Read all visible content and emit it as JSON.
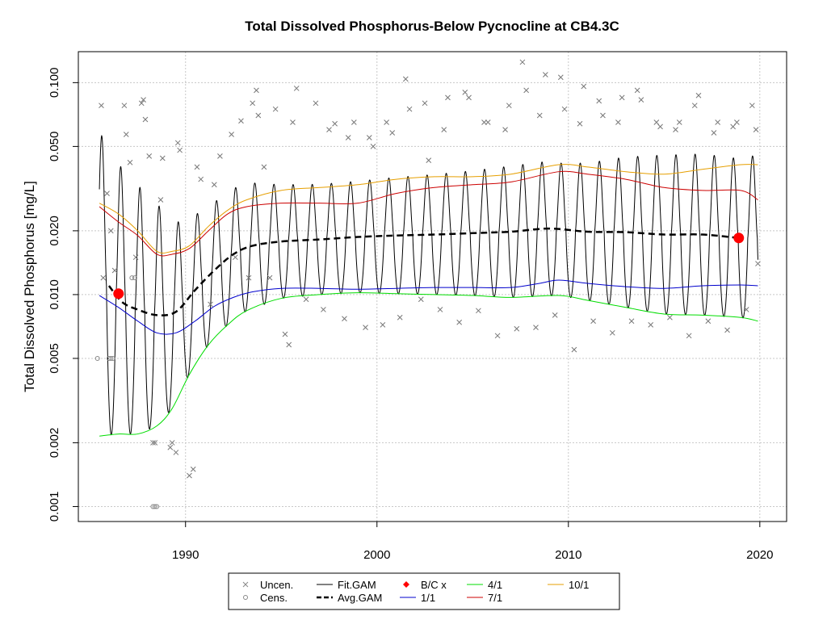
{
  "chart_data": {
    "type": "line",
    "title": "Total Dissolved Phosphorus-Below Pycnocline at CB4.3C",
    "xlabel": "",
    "ylabel": "Total Dissolved Phosphorus [mg/L]",
    "y_scale": "log",
    "xlim": [
      1984.4,
      2021.4
    ],
    "ylim": [
      0.00085,
      0.14
    ],
    "x_ticks": [
      1990,
      2000,
      2010,
      2020
    ],
    "x_tick_labels": [
      "1990",
      "2000",
      "2010",
      "2020"
    ],
    "y_ticks": [
      0.001,
      0.002,
      0.005,
      0.01,
      0.02,
      0.05,
      0.1
    ],
    "y_tick_labels": [
      "0.001",
      "0.002",
      "0.005",
      "0.010",
      "0.020",
      "0.050",
      "0.100"
    ],
    "grid": true,
    "legend_position": "bottom",
    "legend": [
      {
        "label": "Uncen.",
        "symbol": "x",
        "color": "#888888"
      },
      {
        "label": "Cens.",
        "symbol": "o",
        "color": "#888888"
      },
      {
        "label": "Fit.GAM",
        "symbol": "line",
        "color": "#000000"
      },
      {
        "label": "Avg.GAM",
        "symbol": "dashed",
        "color": "#000000"
      },
      {
        "label": "B/C x",
        "symbol": "diamond",
        "color": "#ff0000"
      },
      {
        "label": "1/1",
        "symbol": "line",
        "color": "#0000cc"
      },
      {
        "label": "4/1",
        "symbol": "line",
        "color": "#00dd00"
      },
      {
        "label": "7/1",
        "symbol": "line",
        "color": "#cc0000"
      },
      {
        "label": "10/1",
        "symbol": "line",
        "color": "#e69f00"
      }
    ],
    "series": [
      {
        "name": "10/1",
        "color": "#e69f00",
        "x": [
          1985.5,
          1986.5,
          1987.5,
          1988.5,
          1989.3,
          1990.2,
          1991.2,
          1992.2,
          1993.2,
          1995,
          1997,
          1999,
          2001,
          2003,
          2005,
          2007,
          2009.5,
          2011,
          2013,
          2015,
          2017,
          2019,
          2019.9
        ],
        "y": [
          0.027,
          0.024,
          0.02,
          0.016,
          0.016,
          0.017,
          0.021,
          0.025,
          0.028,
          0.031,
          0.032,
          0.033,
          0.035,
          0.036,
          0.036,
          0.037,
          0.041,
          0.04,
          0.038,
          0.037,
          0.039,
          0.041,
          0.041
        ]
      },
      {
        "name": "7/1",
        "color": "#cc0000",
        "x": [
          1985.5,
          1986.5,
          1987.5,
          1988.5,
          1989.3,
          1990.2,
          1991.2,
          1992.2,
          1993.2,
          1995,
          1997,
          1999,
          2001,
          2003,
          2005,
          2007,
          2009.5,
          2011,
          2013,
          2015,
          2017,
          2019,
          2019.9
        ],
        "y": [
          0.026,
          0.022,
          0.019,
          0.0155,
          0.0155,
          0.0165,
          0.02,
          0.024,
          0.026,
          0.027,
          0.027,
          0.027,
          0.03,
          0.032,
          0.033,
          0.034,
          0.038,
          0.037,
          0.035,
          0.032,
          0.031,
          0.031,
          0.028
        ]
      },
      {
        "name": "1/1",
        "color": "#0000cc",
        "x": [
          1985.5,
          1986.5,
          1987.5,
          1988.5,
          1989.5,
          1990.5,
          1991.5,
          1992.5,
          1993.5,
          1995,
          1997,
          1999,
          2001,
          2003,
          2005,
          2007,
          2008.5,
          2009.5,
          2011,
          2013,
          2015,
          2017,
          2019,
          2019.9
        ],
        "y": [
          0.0099,
          0.0087,
          0.0075,
          0.0066,
          0.0066,
          0.0075,
          0.0088,
          0.0097,
          0.0103,
          0.0107,
          0.0107,
          0.0106,
          0.0107,
          0.0108,
          0.0108,
          0.0108,
          0.0113,
          0.0117,
          0.0113,
          0.0109,
          0.0107,
          0.011,
          0.0111,
          0.011
        ]
      },
      {
        "name": "4/1",
        "color": "#00dd00",
        "x": [
          1985.5,
          1986.5,
          1987.5,
          1988.5,
          1989.3,
          1990.2,
          1991.2,
          1992.2,
          1993.2,
          1995,
          1997,
          1999,
          2001,
          2003,
          2005,
          2007,
          2009.5,
          2011,
          2013,
          2015,
          2017,
          2019,
          2019.9
        ],
        "y": [
          0.00215,
          0.0022,
          0.0022,
          0.0024,
          0.0029,
          0.0042,
          0.0058,
          0.0072,
          0.0084,
          0.0096,
          0.01,
          0.0102,
          0.0101,
          0.01,
          0.0099,
          0.0097,
          0.0099,
          0.0094,
          0.0087,
          0.0081,
          0.008,
          0.0078,
          0.0075
        ]
      },
      {
        "name": "Avg.GAM",
        "color": "#000000",
        "x": [
          1986,
          1986.7,
          1987.5,
          1988.5,
          1989.5,
          1990.5,
          1991.5,
          1992.5,
          1993.5,
          1995,
          1997,
          1999,
          2001,
          2003,
          2005,
          2007,
          2009,
          2011,
          2013,
          2015,
          2017,
          2018.9
        ],
        "y": [
          0.011,
          0.0092,
          0.0085,
          0.008,
          0.0083,
          0.0105,
          0.013,
          0.0155,
          0.017,
          0.0178,
          0.0182,
          0.0187,
          0.019,
          0.0192,
          0.0195,
          0.0198,
          0.0205,
          0.0198,
          0.0197,
          0.0192,
          0.0192,
          0.0185
        ]
      },
      {
        "name": "B/C x",
        "color": "#ff0000",
        "x": [
          1986.5,
          2018.9
        ],
        "y": [
          0.0101,
          0.0185
        ]
      }
    ],
    "fit_gam": {
      "name": "Fit.GAM",
      "color": "#000000",
      "start": 1985.5,
      "end": 2019.9,
      "peak_phase": 0.62,
      "note": "seasonal oscillation; annual peaks ~0.05-0.07 mg/L, troughs ~0.0022-0.008 mg/L"
    },
    "observations_uncensored": [
      [
        1985.6,
        0.078
      ],
      [
        1985.7,
        0.012
      ],
      [
        1985.9,
        0.03
      ],
      [
        1986.1,
        0.02
      ],
      [
        1986.3,
        0.013
      ],
      [
        1986.8,
        0.078
      ],
      [
        1986.9,
        0.057
      ],
      [
        1987.1,
        0.042
      ],
      [
        1987.4,
        0.015
      ],
      [
        1987.7,
        0.08
      ],
      [
        1987.8,
        0.083
      ],
      [
        1987.9,
        0.067
      ],
      [
        1988.1,
        0.045
      ],
      [
        1988.3,
        0.002
      ],
      [
        1988.4,
        0.002
      ],
      [
        1988.7,
        0.028
      ],
      [
        1988.8,
        0.044
      ],
      [
        1989.2,
        0.0019
      ],
      [
        1989.3,
        0.002
      ],
      [
        1989.5,
        0.0018
      ],
      [
        1989.6,
        0.052
      ],
      [
        1989.7,
        0.048
      ],
      [
        1990.2,
        0.0014
      ],
      [
        1990.4,
        0.0015
      ],
      [
        1990.6,
        0.04
      ],
      [
        1990.8,
        0.035
      ],
      [
        1991.3,
        0.009
      ],
      [
        1991.5,
        0.033
      ],
      [
        1991.8,
        0.045
      ],
      [
        1992.4,
        0.057
      ],
      [
        1992.6,
        0.015
      ],
      [
        1992.9,
        0.066
      ],
      [
        1993.3,
        0.012
      ],
      [
        1993.5,
        0.08
      ],
      [
        1993.7,
        0.092
      ],
      [
        1993.8,
        0.07
      ],
      [
        1994.1,
        0.04
      ],
      [
        1994.4,
        0.012
      ],
      [
        1994.7,
        0.075
      ],
      [
        1995.2,
        0.0065
      ],
      [
        1995.4,
        0.0058
      ],
      [
        1995.6,
        0.065
      ],
      [
        1995.8,
        0.094
      ],
      [
        1996.3,
        0.0095
      ],
      [
        1996.8,
        0.08
      ],
      [
        1997.2,
        0.0085
      ],
      [
        1997.5,
        0.06
      ],
      [
        1997.8,
        0.064
      ],
      [
        1998.3,
        0.0077
      ],
      [
        1998.5,
        0.055
      ],
      [
        1998.8,
        0.065
      ],
      [
        1999.4,
        0.007
      ],
      [
        1999.6,
        0.055
      ],
      [
        1999.8,
        0.05
      ],
      [
        2000.3,
        0.0072
      ],
      [
        2000.5,
        0.065
      ],
      [
        2000.8,
        0.058
      ],
      [
        2001.2,
        0.0078
      ],
      [
        2001.5,
        0.104
      ],
      [
        2001.7,
        0.075
      ],
      [
        2002.3,
        0.0095
      ],
      [
        2002.5,
        0.08
      ],
      [
        2002.7,
        0.043
      ],
      [
        2003.3,
        0.0085
      ],
      [
        2003.5,
        0.06
      ],
      [
        2003.7,
        0.085
      ],
      [
        2004.3,
        0.0074
      ],
      [
        2004.6,
        0.09
      ],
      [
        2004.8,
        0.085
      ],
      [
        2005.3,
        0.0084
      ],
      [
        2005.6,
        0.065
      ],
      [
        2005.8,
        0.065
      ],
      [
        2006.3,
        0.0064
      ],
      [
        2006.7,
        0.06
      ],
      [
        2006.9,
        0.078
      ],
      [
        2007.3,
        0.0069
      ],
      [
        2007.6,
        0.125
      ],
      [
        2007.8,
        0.092
      ],
      [
        2008.3,
        0.007
      ],
      [
        2008.5,
        0.07
      ],
      [
        2008.8,
        0.109
      ],
      [
        2009.3,
        0.008
      ],
      [
        2009.6,
        0.106
      ],
      [
        2009.8,
        0.075
      ],
      [
        2010.3,
        0.0055
      ],
      [
        2010.6,
        0.064
      ],
      [
        2010.8,
        0.096
      ],
      [
        2011.3,
        0.0075
      ],
      [
        2011.6,
        0.082
      ],
      [
        2011.8,
        0.07
      ],
      [
        2012.3,
        0.0066
      ],
      [
        2012.6,
        0.065
      ],
      [
        2012.8,
        0.085
      ],
      [
        2013.3,
        0.0075
      ],
      [
        2013.6,
        0.092
      ],
      [
        2013.8,
        0.083
      ],
      [
        2014.3,
        0.0072
      ],
      [
        2014.6,
        0.065
      ],
      [
        2014.8,
        0.062
      ],
      [
        2015.3,
        0.0078
      ],
      [
        2015.6,
        0.06
      ],
      [
        2015.8,
        0.065
      ],
      [
        2016.3,
        0.0064
      ],
      [
        2016.6,
        0.078
      ],
      [
        2016.8,
        0.087
      ],
      [
        2017.3,
        0.0075
      ],
      [
        2017.6,
        0.058
      ],
      [
        2017.8,
        0.065
      ],
      [
        2018.3,
        0.0068
      ],
      [
        2018.6,
        0.062
      ],
      [
        2018.8,
        0.065
      ],
      [
        2019.3,
        0.0085
      ],
      [
        2019.6,
        0.078
      ],
      [
        2019.8,
        0.06
      ],
      [
        2019.9,
        0.014
      ]
    ],
    "observations_censored": [
      [
        1985.4,
        0.005
      ],
      [
        1986.0,
        0.005
      ],
      [
        1986.1,
        0.005
      ],
      [
        1986.2,
        0.005
      ],
      [
        1987.2,
        0.012
      ],
      [
        1987.35,
        0.012
      ],
      [
        1988.3,
        0.001
      ],
      [
        1988.4,
        0.001
      ],
      [
        1988.5,
        0.001
      ]
    ]
  }
}
